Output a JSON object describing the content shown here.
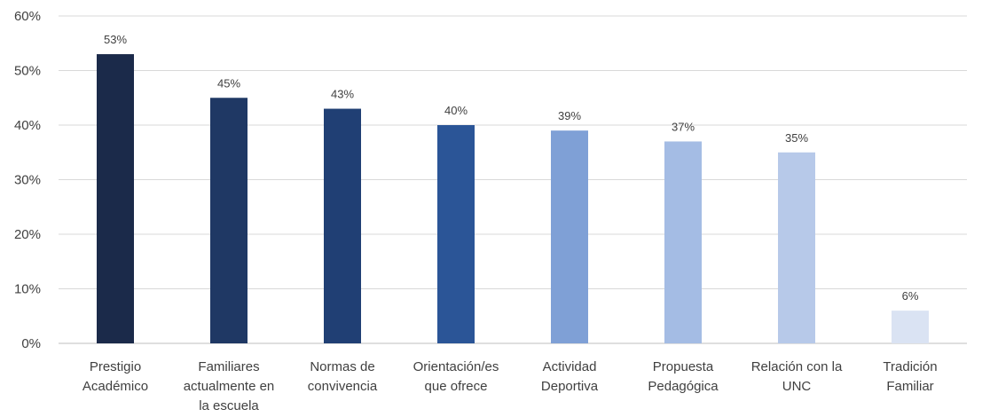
{
  "chart_data": {
    "type": "bar",
    "categories": [
      [
        "Prestigio",
        "Académico"
      ],
      [
        "Familiares",
        "actualmente en",
        "la escuela"
      ],
      [
        "Normas de",
        "convivencia"
      ],
      [
        "Orientación/es",
        "que ofrece"
      ],
      [
        "Actividad",
        "Deportiva"
      ],
      [
        "Propuesta",
        "Pedagógica"
      ],
      [
        "Relación con la",
        "UNC"
      ],
      [
        "Tradición",
        "Familiar"
      ]
    ],
    "values": [
      53,
      45,
      43,
      40,
      39,
      37,
      35,
      6
    ],
    "data_labels": [
      "53%",
      "45%",
      "43%",
      "40%",
      "39%",
      "37%",
      "35%",
      "6%"
    ],
    "bar_colors": [
      "#1b2a4a",
      "#1f3864",
      "#203f74",
      "#2b5597",
      "#7fa0d6",
      "#a4bce4",
      "#b7c9e9",
      "#dae3f3"
    ],
    "yticks": [
      0,
      10,
      20,
      30,
      40,
      50,
      60
    ],
    "ytick_labels": [
      "0%",
      "10%",
      "20%",
      "30%",
      "40%",
      "50%",
      "60%"
    ],
    "ylim": [
      0,
      60
    ],
    "grid": true,
    "legend": "none"
  }
}
